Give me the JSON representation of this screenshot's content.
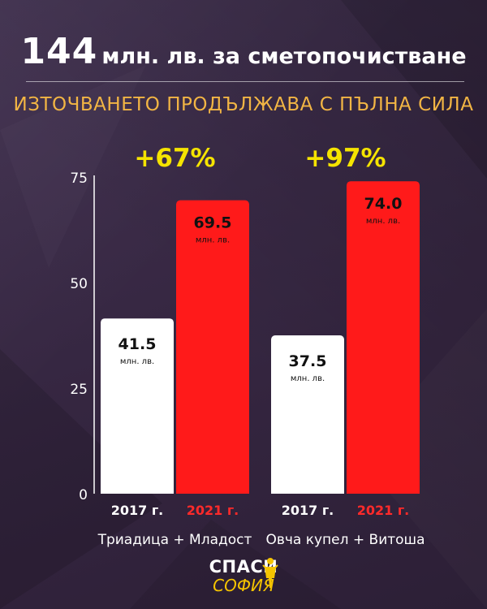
{
  "header": {
    "title_number": "144",
    "title_rest": "млн. лв. за сметопочистване",
    "subtitle": "ИЗТОЧВАНЕТО ПРОДЪЛЖАВА С ПЪЛНА СИЛА"
  },
  "logo": {
    "line1": "СПАСИ",
    "line2": "СОФИЯ"
  },
  "colors": {
    "background": "#3a2a4d",
    "bar_2017": "#ffffff",
    "bar_2021": "#ff1a1a",
    "growth": "#f5e400",
    "subtitle": "#f2b544"
  },
  "chart_data": {
    "type": "bar",
    "title": "",
    "xlabel": "",
    "ylabel": "",
    "ylim": [
      0,
      75
    ],
    "yticks": [
      0,
      25,
      50,
      75
    ],
    "value_unit": "млн. лв.",
    "grid": false,
    "groups": [
      {
        "name": "Триадица + Младост",
        "growth": "+67%",
        "bars": [
          {
            "year": "2017 г.",
            "value": 41.5,
            "label": "41.5"
          },
          {
            "year": "2021 г.",
            "value": 69.5,
            "label": "69.5"
          }
        ]
      },
      {
        "name": "Овча купел + Витоша",
        "growth": "+97%",
        "bars": [
          {
            "year": "2017 г.",
            "value": 37.5,
            "label": "37.5"
          },
          {
            "year": "2021 г.",
            "value": 74.0,
            "label": "74.0"
          }
        ]
      }
    ]
  }
}
